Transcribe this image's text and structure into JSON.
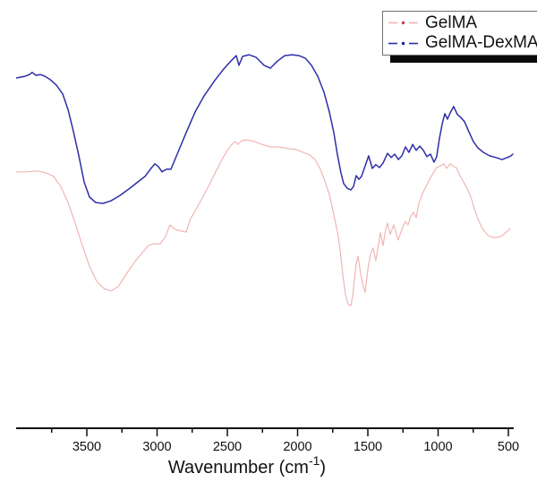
{
  "chart_data": {
    "type": "line",
    "title": "",
    "xlabel": {
      "text": "Wavenumber (cm",
      "sup": "-1",
      "close": ")"
    },
    "ylabel": "",
    "x_range": [
      4003,
      468
    ],
    "x_reversed": true,
    "grid": false,
    "legend_position": "top-right",
    "x_ticks_major": [
      3500,
      3000,
      2500,
      2000,
      1500,
      1000,
      500
    ],
    "x_ticks_minor": [
      3750,
      3250,
      2750,
      2250,
      1750,
      1250,
      750
    ],
    "y_units": "transmittance (a.u., 0-100)",
    "series": [
      {
        "name": "GelMA",
        "line_color": "#f0b6b4",
        "marker_dot_color": "#cc3b44",
        "line_style": "dash-dot",
        "points": [
          [
            4000,
            60.9
          ],
          [
            3926,
            60.9
          ],
          [
            3850,
            61.1
          ],
          [
            3787,
            60.6
          ],
          [
            3736,
            59.8
          ],
          [
            3685,
            57.4
          ],
          [
            3634,
            53.6
          ],
          [
            3583,
            48.7
          ],
          [
            3532,
            43.4
          ],
          [
            3481,
            38.5
          ],
          [
            3430,
            34.9
          ],
          [
            3379,
            33.2
          ],
          [
            3328,
            32.6
          ],
          [
            3277,
            33.6
          ],
          [
            3220,
            36.6
          ],
          [
            3162,
            39.4
          ],
          [
            3105,
            41.7
          ],
          [
            3061,
            43.4
          ],
          [
            3022,
            43.8
          ],
          [
            2978,
            43.8
          ],
          [
            2940,
            45.5
          ],
          [
            2908,
            48.3
          ],
          [
            2869,
            47.2
          ],
          [
            2825,
            46.8
          ],
          [
            2793,
            46.6
          ],
          [
            2761,
            49.8
          ],
          [
            2717,
            52.3
          ],
          [
            2672,
            55.1
          ],
          [
            2627,
            57.9
          ],
          [
            2583,
            60.9
          ],
          [
            2538,
            63.8
          ],
          [
            2500,
            66.0
          ],
          [
            2468,
            67.4
          ],
          [
            2443,
            68.1
          ],
          [
            2424,
            67.4
          ],
          [
            2398,
            68.3
          ],
          [
            2360,
            68.5
          ],
          [
            2309,
            68.1
          ],
          [
            2252,
            67.4
          ],
          [
            2194,
            66.8
          ],
          [
            2131,
            66.8
          ],
          [
            2067,
            66.4
          ],
          [
            2010,
            66.2
          ],
          [
            1959,
            65.5
          ],
          [
            1914,
            64.9
          ],
          [
            1876,
            63.8
          ],
          [
            1838,
            61.5
          ],
          [
            1806,
            58.7
          ],
          [
            1774,
            55.5
          ],
          [
            1749,
            51.9
          ],
          [
            1730,
            48.7
          ],
          [
            1711,
            45.7
          ],
          [
            1691,
            40.6
          ],
          [
            1679,
            36.6
          ],
          [
            1659,
            31.7
          ],
          [
            1640,
            29.4
          ],
          [
            1621,
            29.1
          ],
          [
            1608,
            31.3
          ],
          [
            1596,
            35.3
          ],
          [
            1583,
            39.1
          ],
          [
            1570,
            40.9
          ],
          [
            1551,
            36.6
          ],
          [
            1532,
            33.6
          ],
          [
            1519,
            32.3
          ],
          [
            1500,
            37.7
          ],
          [
            1481,
            41.5
          ],
          [
            1462,
            42.8
          ],
          [
            1443,
            39.8
          ],
          [
            1424,
            43.6
          ],
          [
            1411,
            46.4
          ],
          [
            1392,
            43.4
          ],
          [
            1373,
            47.2
          ],
          [
            1360,
            48.7
          ],
          [
            1341,
            46.0
          ],
          [
            1315,
            48.3
          ],
          [
            1284,
            44.7
          ],
          [
            1252,
            47.7
          ],
          [
            1233,
            49.1
          ],
          [
            1214,
            48.3
          ],
          [
            1194,
            50.4
          ],
          [
            1175,
            51.3
          ],
          [
            1156,
            50.0
          ],
          [
            1137,
            53.4
          ],
          [
            1112,
            55.7
          ],
          [
            1086,
            57.4
          ],
          [
            1061,
            59.1
          ],
          [
            1035,
            60.6
          ],
          [
            1010,
            61.9
          ],
          [
            984,
            62.3
          ],
          [
            959,
            62.8
          ],
          [
            940,
            61.7
          ],
          [
            914,
            62.8
          ],
          [
            889,
            62.1
          ],
          [
            870,
            61.9
          ],
          [
            845,
            60.0
          ],
          [
            819,
            58.5
          ],
          [
            794,
            57.0
          ],
          [
            768,
            55.1
          ],
          [
            743,
            52.3
          ],
          [
            717,
            49.8
          ],
          [
            692,
            47.9
          ],
          [
            666,
            46.6
          ],
          [
            641,
            45.7
          ],
          [
            609,
            45.3
          ],
          [
            577,
            45.3
          ],
          [
            545,
            45.7
          ],
          [
            514,
            46.6
          ],
          [
            488,
            47.4
          ]
        ]
      },
      {
        "name": "GelMA-DexMA",
        "line_color": "#2e2ea8",
        "marker_dot_color": "#1e1e8f",
        "line_style": "dash-dot",
        "points": [
          [
            4000,
            83.2
          ],
          [
            3939,
            83.6
          ],
          [
            3908,
            84.0
          ],
          [
            3889,
            84.5
          ],
          [
            3863,
            83.8
          ],
          [
            3831,
            84.0
          ],
          [
            3799,
            83.6
          ],
          [
            3761,
            82.8
          ],
          [
            3717,
            81.5
          ],
          [
            3672,
            79.4
          ],
          [
            3634,
            75.7
          ],
          [
            3596,
            70.6
          ],
          [
            3557,
            64.7
          ],
          [
            3519,
            58.5
          ],
          [
            3481,
            54.9
          ],
          [
            3436,
            53.6
          ],
          [
            3385,
            53.4
          ],
          [
            3328,
            54.0
          ],
          [
            3264,
            55.3
          ],
          [
            3201,
            56.8
          ],
          [
            3137,
            58.5
          ],
          [
            3086,
            59.8
          ],
          [
            3048,
            61.5
          ],
          [
            3016,
            62.8
          ],
          [
            2990,
            62.1
          ],
          [
            2965,
            60.9
          ],
          [
            2933,
            61.5
          ],
          [
            2901,
            61.5
          ],
          [
            2857,
            65.1
          ],
          [
            2793,
            70.2
          ],
          [
            2729,
            75.1
          ],
          [
            2666,
            78.9
          ],
          [
            2589,
            82.6
          ],
          [
            2526,
            85.3
          ],
          [
            2475,
            87.2
          ],
          [
            2436,
            88.5
          ],
          [
            2417,
            86.2
          ],
          [
            2392,
            88.3
          ],
          [
            2347,
            88.7
          ],
          [
            2296,
            88.1
          ],
          [
            2239,
            86.2
          ],
          [
            2194,
            85.5
          ],
          [
            2143,
            87.2
          ],
          [
            2092,
            88.5
          ],
          [
            2041,
            88.7
          ],
          [
            1990,
            88.5
          ],
          [
            1946,
            87.9
          ],
          [
            1901,
            86.2
          ],
          [
            1857,
            83.6
          ],
          [
            1812,
            79.8
          ],
          [
            1774,
            75.1
          ],
          [
            1742,
            70.2
          ],
          [
            1717,
            65.1
          ],
          [
            1691,
            60.6
          ],
          [
            1672,
            58.1
          ],
          [
            1647,
            57.0
          ],
          [
            1621,
            56.6
          ],
          [
            1602,
            57.4
          ],
          [
            1583,
            60.0
          ],
          [
            1564,
            59.1
          ],
          [
            1545,
            59.8
          ],
          [
            1519,
            62.3
          ],
          [
            1494,
            64.7
          ],
          [
            1468,
            61.7
          ],
          [
            1443,
            62.6
          ],
          [
            1417,
            61.9
          ],
          [
            1392,
            63.0
          ],
          [
            1360,
            65.3
          ],
          [
            1334,
            64.3
          ],
          [
            1309,
            65.1
          ],
          [
            1283,
            63.8
          ],
          [
            1258,
            64.7
          ],
          [
            1232,
            66.8
          ],
          [
            1207,
            65.5
          ],
          [
            1181,
            67.4
          ],
          [
            1156,
            66.0
          ],
          [
            1130,
            67.0
          ],
          [
            1105,
            66.0
          ],
          [
            1080,
            64.5
          ],
          [
            1054,
            65.1
          ],
          [
            1029,
            63.2
          ],
          [
            1010,
            64.5
          ],
          [
            991,
            68.7
          ],
          [
            971,
            72.3
          ],
          [
            952,
            74.7
          ],
          [
            933,
            73.4
          ],
          [
            914,
            74.9
          ],
          [
            889,
            76.4
          ],
          [
            863,
            74.5
          ],
          [
            838,
            73.8
          ],
          [
            812,
            72.8
          ],
          [
            781,
            70.4
          ],
          [
            749,
            68.1
          ],
          [
            717,
            66.6
          ],
          [
            678,
            65.5
          ],
          [
            634,
            64.7
          ],
          [
            589,
            64.3
          ],
          [
            545,
            63.8
          ],
          [
            507,
            64.3
          ],
          [
            481,
            64.7
          ],
          [
            468,
            65.1
          ]
        ]
      }
    ]
  },
  "legend": {
    "items": [
      {
        "label": "GelMA"
      },
      {
        "label": "GelMA-DexMA"
      }
    ]
  }
}
